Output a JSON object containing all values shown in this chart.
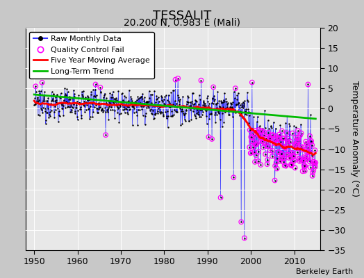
{
  "title": "TESSALIT",
  "subtitle": "20.200 N, 0.983 E (Mali)",
  "ylabel": "Temperature Anomaly (°C)",
  "credit": "Berkeley Earth",
  "xlim": [
    1948,
    2016
  ],
  "ylim": [
    -35,
    20
  ],
  "yticks": [
    -35,
    -30,
    -25,
    -20,
    -15,
    -10,
    -5,
    0,
    5,
    10,
    15,
    20
  ],
  "xticks": [
    1950,
    1960,
    1970,
    1980,
    1990,
    2000,
    2010
  ],
  "fig_bg": "#c8c8c8",
  "ax_bg": "#e8e8e8",
  "raw_color": "#3333ff",
  "dot_color": "#000000",
  "qc_color": "#ff00ff",
  "moving_avg_color": "#ff0000",
  "trend_color": "#00bb00",
  "title_fontsize": 13,
  "subtitle_fontsize": 10,
  "tick_fontsize": 9,
  "ylabel_fontsize": 9,
  "legend_fontsize": 8,
  "credit_fontsize": 8
}
